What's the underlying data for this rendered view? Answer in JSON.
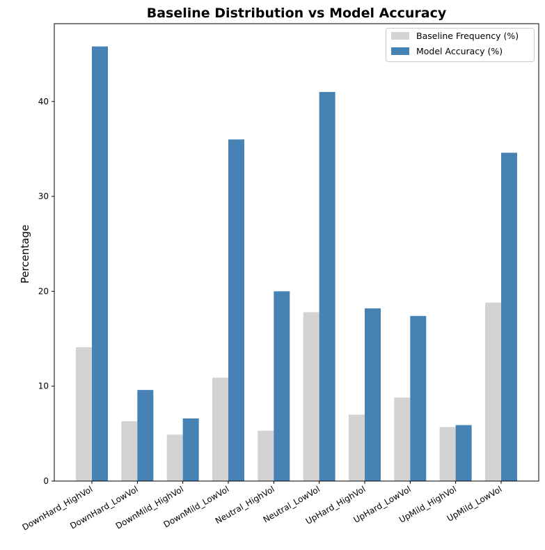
{
  "chart_data": {
    "type": "bar",
    "title": "Baseline Distribution vs Model Accuracy",
    "xlabel": "",
    "ylabel": "Percentage",
    "categories": [
      "DownHard_HighVol",
      "DownHard_LowVol",
      "DownMild_HighVol",
      "DownMild_LowVol",
      "Neutral_HighVol",
      "Neutral_LowVol",
      "UpHard_HighVol",
      "UpHard_LowVol",
      "UpMild_HighVol",
      "UpMild_LowVol"
    ],
    "series": [
      {
        "name": "Baseline Frequency (%)",
        "color": "#d3d3d3",
        "values": [
          14.1,
          6.3,
          4.9,
          10.9,
          5.3,
          17.8,
          7.0,
          8.8,
          5.7,
          18.8
        ]
      },
      {
        "name": "Model Accuracy (%)",
        "color": "#4682b4",
        "values": [
          45.8,
          9.6,
          6.6,
          36.0,
          20.0,
          41.0,
          18.2,
          17.4,
          5.9,
          34.6
        ]
      }
    ],
    "ylim": [
      0,
      48.2
    ],
    "yticks": [
      "0",
      "10",
      "20",
      "30",
      "40"
    ],
    "grid": false,
    "legend_position": "top-right"
  }
}
